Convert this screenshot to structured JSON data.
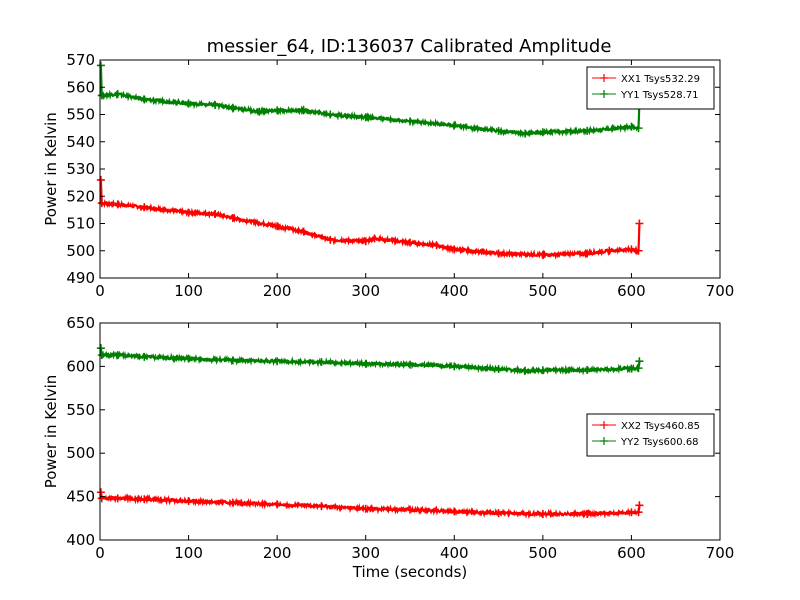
{
  "figure": {
    "title": "messier_64, ID:136037 Calibrated Amplitude",
    "xlabel": "Time (seconds)"
  },
  "colors": {
    "red": "#ff0000",
    "green": "#008000"
  },
  "chart_data": [
    {
      "type": "line",
      "title": "messier_64, ID:136037 Calibrated Amplitude",
      "xlabel": "",
      "ylabel": "Power in Kelvin",
      "xlim": [
        0,
        700
      ],
      "ylim": [
        490,
        570
      ],
      "xticks": [
        0,
        100,
        200,
        300,
        400,
        500,
        600,
        700
      ],
      "yticks": [
        490,
        500,
        510,
        520,
        530,
        540,
        550,
        560,
        570
      ],
      "grid": false,
      "legend_position": "top-right",
      "series": [
        {
          "name": "XX1 Tsys532.29",
          "color": "#ff0000",
          "x": [
            1,
            2,
            20,
            50,
            100,
            130,
            150,
            200,
            230,
            260,
            300,
            310,
            350,
            380,
            400,
            450,
            500,
            550,
            575,
            600,
            608,
            609
          ],
          "y": [
            526,
            517.5,
            517,
            516,
            514,
            513.5,
            512,
            509,
            507,
            504,
            503.5,
            504.5,
            503,
            502,
            500.5,
            499,
            498.5,
            499,
            500,
            500.5,
            500,
            510
          ]
        },
        {
          "name": "YY1 Tsys528.71",
          "color": "#008000",
          "x": [
            1,
            2,
            20,
            50,
            100,
            130,
            150,
            180,
            200,
            230,
            260,
            300,
            350,
            400,
            450,
            480,
            500,
            550,
            600,
            608,
            609
          ],
          "y": [
            568,
            557,
            557.5,
            555.5,
            554,
            553.5,
            552.5,
            551,
            551.5,
            551.5,
            550,
            549,
            547.5,
            546,
            544,
            543,
            543.5,
            544,
            545.5,
            545,
            555
          ]
        }
      ]
    },
    {
      "type": "line",
      "title": "",
      "xlabel": "Time (seconds)",
      "ylabel": "Power in Kelvin",
      "xlim": [
        0,
        700
      ],
      "ylim": [
        400,
        650
      ],
      "xticks": [
        0,
        100,
        200,
        300,
        400,
        500,
        600,
        700
      ],
      "yticks": [
        400,
        450,
        500,
        550,
        600,
        650
      ],
      "grid": false,
      "legend_position": "center-right",
      "series": [
        {
          "name": "XX2 Tsys460.85",
          "color": "#ff0000",
          "x": [
            1,
            2,
            20,
            50,
            100,
            150,
            200,
            250,
            300,
            350,
            400,
            450,
            500,
            550,
            600,
            608,
            609
          ],
          "y": [
            455,
            448,
            448,
            447,
            445,
            443,
            441,
            439,
            436,
            435,
            433,
            431,
            430,
            430,
            432,
            432,
            440
          ]
        },
        {
          "name": "YY2 Tsys600.68",
          "color": "#008000",
          "x": [
            1,
            2,
            20,
            50,
            100,
            150,
            200,
            250,
            300,
            350,
            400,
            450,
            480,
            500,
            550,
            600,
            608,
            609
          ],
          "y": [
            621,
            613,
            613,
            611,
            609,
            607,
            606,
            605,
            603,
            602,
            600,
            597,
            595,
            595.5,
            596,
            597.5,
            598,
            606
          ]
        }
      ]
    }
  ]
}
